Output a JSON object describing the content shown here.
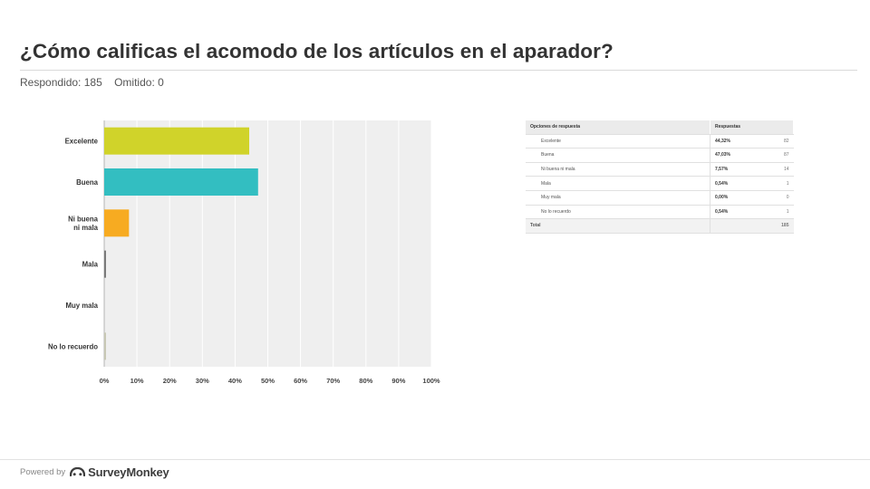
{
  "header": {
    "title": "¿Cómo calificas el acomodo de los artículos en el aparador?",
    "answered": "Respondido: 185",
    "skipped": "Omitido: 0"
  },
  "chart_data": {
    "type": "bar",
    "orientation": "horizontal",
    "categories": [
      "Excelente",
      "Buena",
      "Ni buena ni mala",
      "Mala",
      "Muy mala",
      "No lo recuerdo"
    ],
    "values": [
      44.32,
      47.03,
      7.57,
      0.54,
      0.0,
      0.54
    ],
    "colors": [
      "#d0d32a",
      "#33bec1",
      "#f7ab21",
      "#777777",
      "#8c8c8c",
      "#c7c7b3"
    ],
    "xlim": [
      0,
      100
    ],
    "x_ticks": [
      "0%",
      "10%",
      "20%",
      "30%",
      "40%",
      "50%",
      "60%",
      "70%",
      "80%",
      "90%",
      "100%"
    ],
    "grid": true
  },
  "table": {
    "headers": [
      "Opciones de respuesta",
      "Respuestas"
    ],
    "rows": [
      {
        "option": "Excelente",
        "percent": "44,32%",
        "count": "82"
      },
      {
        "option": "Buena",
        "percent": "47,03%",
        "count": "87"
      },
      {
        "option": "Ni buena ni mala",
        "percent": "7,57%",
        "count": "14"
      },
      {
        "option": "Mala",
        "percent": "0,54%",
        "count": "1"
      },
      {
        "option": "Muy mala",
        "percent": "0,00%",
        "count": "0"
      },
      {
        "option": "No lo recuerdo",
        "percent": "0,54%",
        "count": "1"
      }
    ],
    "total_label": "Total",
    "total_count": "185"
  },
  "footer": {
    "powered_by": "Powered by",
    "brand": "SurveyMonkey",
    "logo_icon": "surveymonkey-logo-icon"
  }
}
